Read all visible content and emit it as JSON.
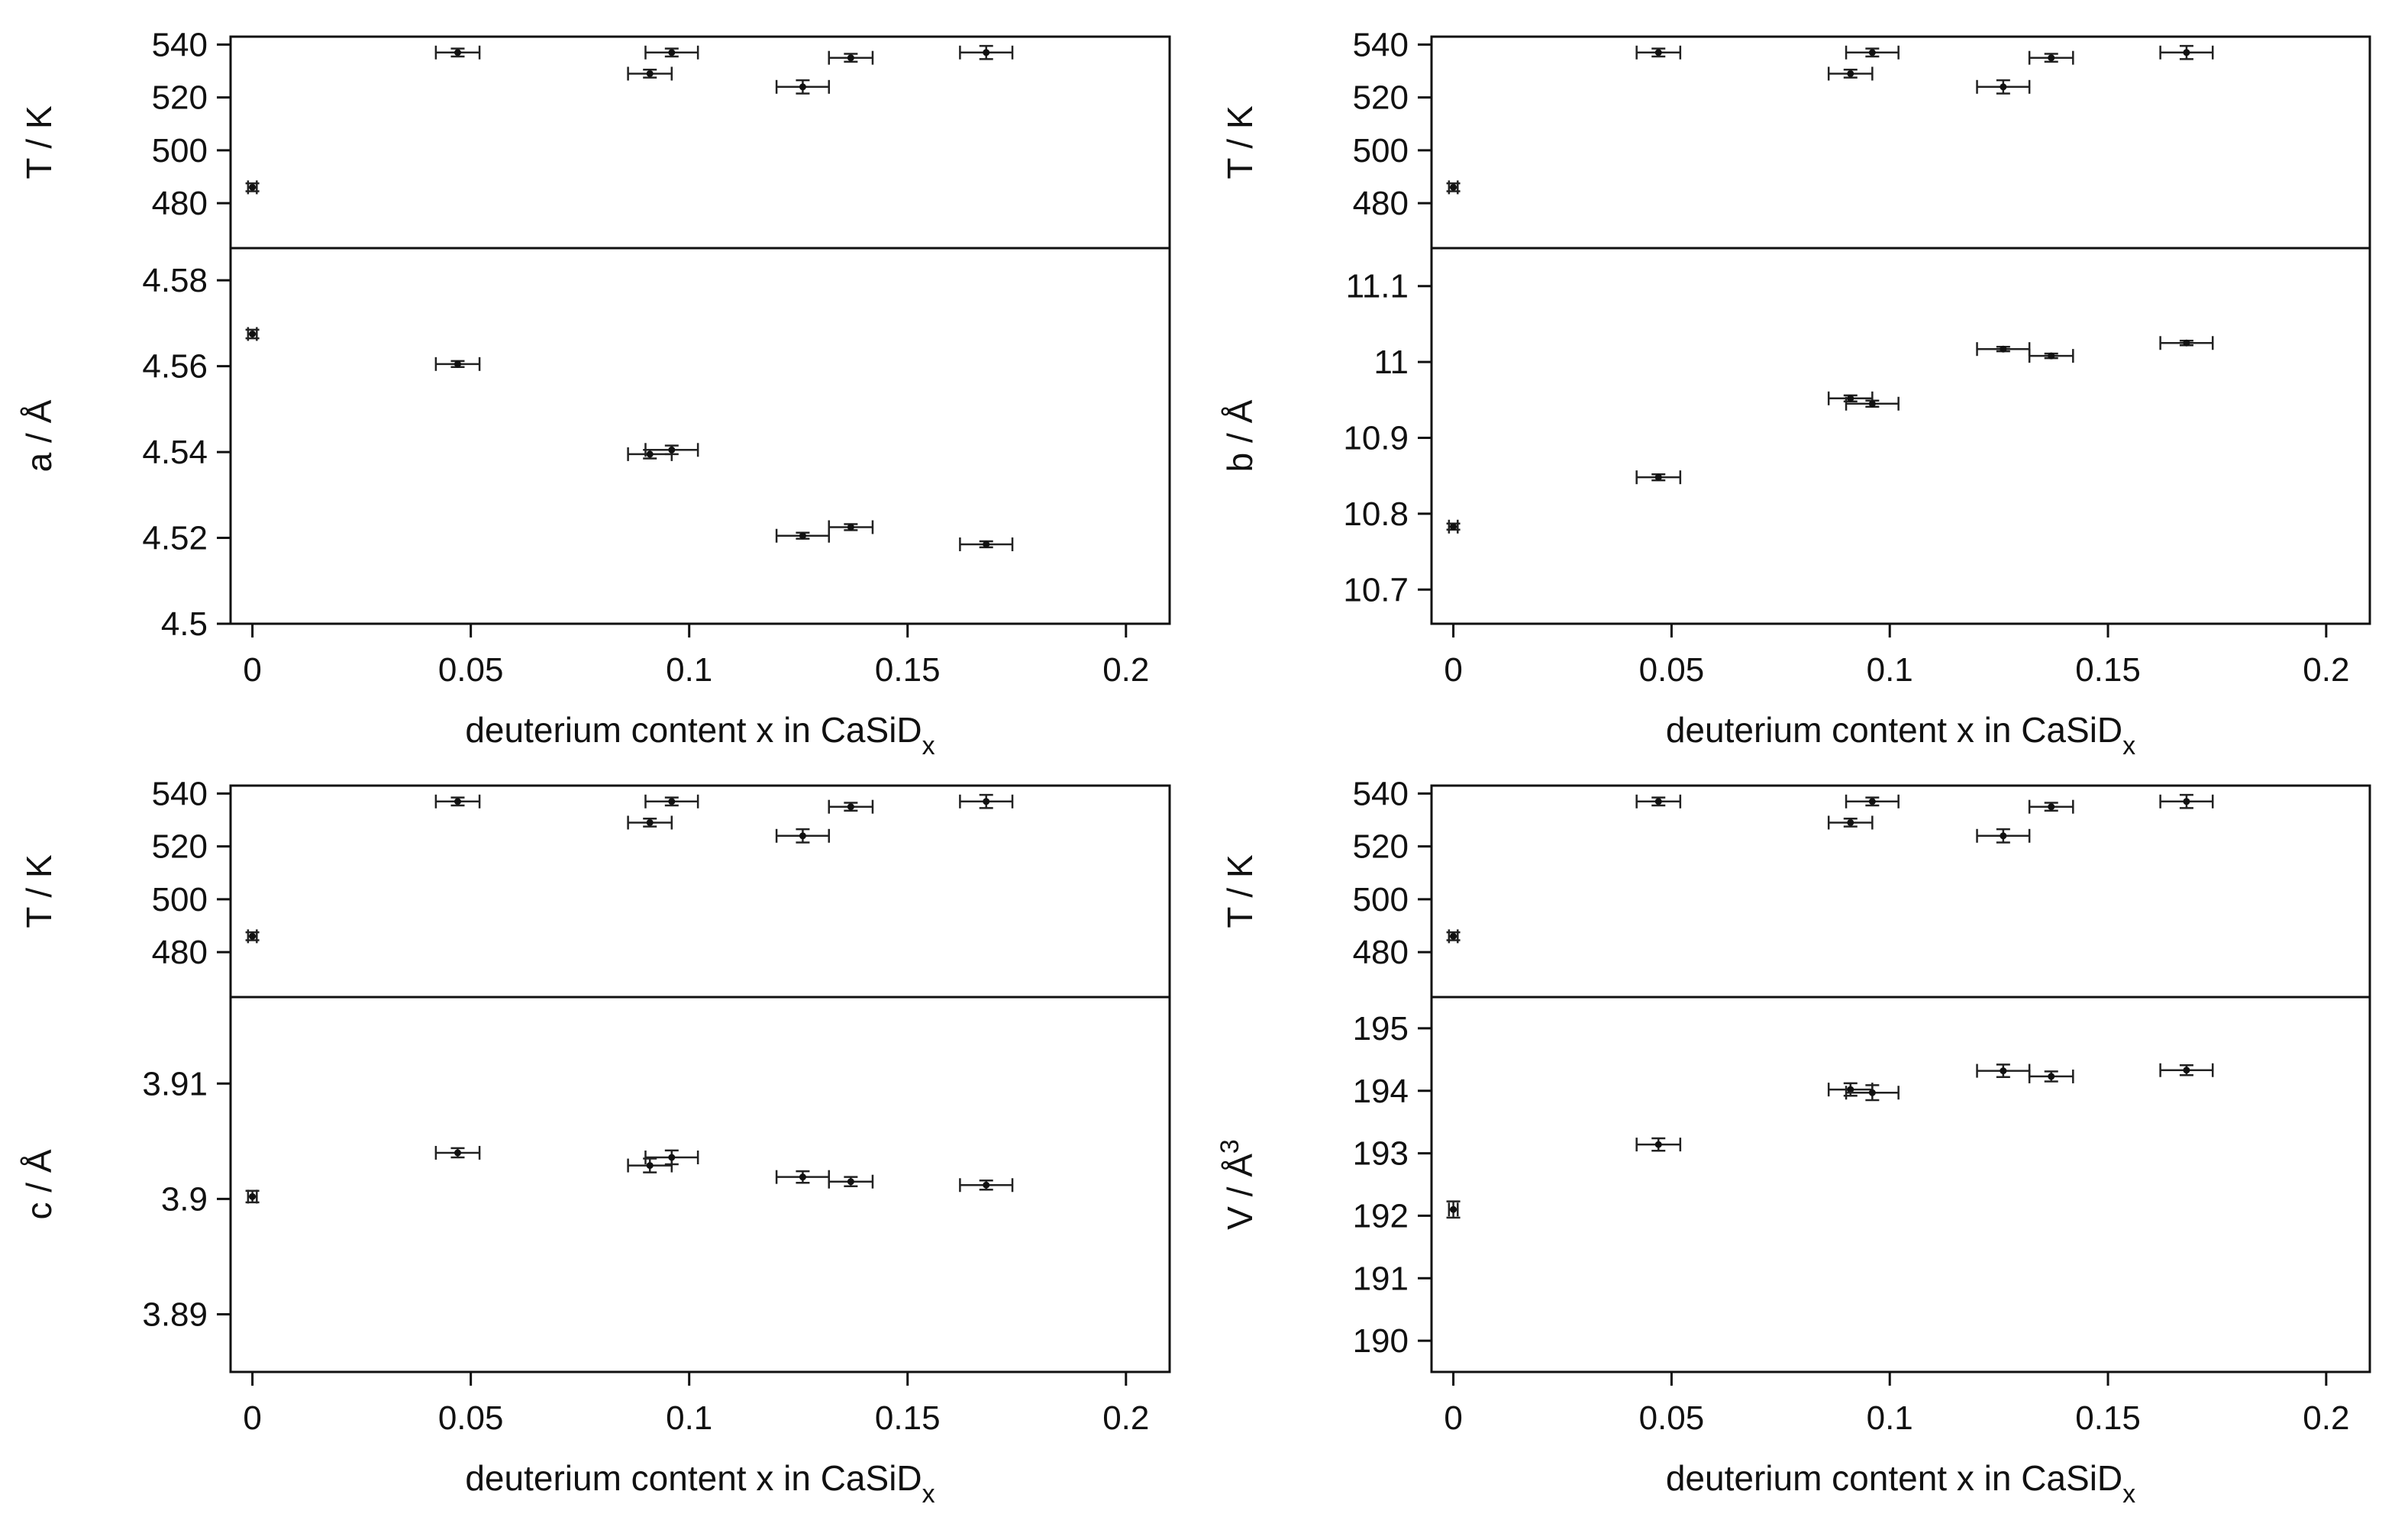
{
  "chart_data": [
    {
      "type": "scatter",
      "xlabel": "deuterium content x in CaSiD",
      "xlabel_sub": "x",
      "x_ticks": [
        "0",
        "0.05",
        "0.1",
        "0.15",
        "0.2"
      ],
      "xlim": [
        -0.005,
        0.21
      ],
      "top": {
        "ylabel": "T / K",
        "y_ticks": [
          "480",
          "500",
          "520",
          "540"
        ],
        "ylim": [
          463,
          543
        ],
        "points": [
          {
            "x": 0.0,
            "y": 486,
            "xerr": 0.001,
            "yerr": 1.5
          },
          {
            "x": 0.047,
            "y": 537,
            "xerr": 0.005,
            "yerr": 1.5
          },
          {
            "x": 0.091,
            "y": 529,
            "xerr": 0.005,
            "yerr": 1.5
          },
          {
            "x": 0.096,
            "y": 537,
            "xerr": 0.006,
            "yerr": 1.5
          },
          {
            "x": 0.126,
            "y": 524,
            "xerr": 0.006,
            "yerr": 2.5
          },
          {
            "x": 0.137,
            "y": 535,
            "xerr": 0.005,
            "yerr": 1.5
          },
          {
            "x": 0.168,
            "y": 537,
            "xerr": 0.006,
            "yerr": 2.5
          }
        ]
      },
      "bottom": {
        "ylabel": "a / Å",
        "y_ticks": [
          "4.5",
          "4.52",
          "4.54",
          "4.56",
          "4.58"
        ],
        "ylim": [
          4.5,
          4.5875
        ],
        "points": [
          {
            "x": 0.0,
            "y": 4.5675,
            "xerr": 0.001,
            "yerr": 0.001
          },
          {
            "x": 0.047,
            "y": 4.5605,
            "xerr": 0.005,
            "yerr": 0.0007
          },
          {
            "x": 0.091,
            "y": 4.5395,
            "xerr": 0.005,
            "yerr": 0.001
          },
          {
            "x": 0.096,
            "y": 4.5405,
            "xerr": 0.006,
            "yerr": 0.001
          },
          {
            "x": 0.126,
            "y": 4.5205,
            "xerr": 0.006,
            "yerr": 0.0007
          },
          {
            "x": 0.137,
            "y": 4.5225,
            "xerr": 0.005,
            "yerr": 0.0007
          },
          {
            "x": 0.168,
            "y": 4.5185,
            "xerr": 0.006,
            "yerr": 0.0007
          }
        ]
      }
    },
    {
      "type": "scatter",
      "xlabel": "deuterium content x in CaSiD",
      "xlabel_sub": "x",
      "x_ticks": [
        "0",
        "0.05",
        "0.1",
        "0.15",
        "0.2"
      ],
      "xlim": [
        -0.005,
        0.21
      ],
      "top": {
        "ylabel": "T / K",
        "y_ticks": [
          "480",
          "500",
          "520",
          "540"
        ],
        "ylim": [
          463,
          543
        ],
        "points": [
          {
            "x": 0.0,
            "y": 486,
            "xerr": 0.001,
            "yerr": 1.5
          },
          {
            "x": 0.047,
            "y": 537,
            "xerr": 0.005,
            "yerr": 1.5
          },
          {
            "x": 0.091,
            "y": 529,
            "xerr": 0.005,
            "yerr": 1.5
          },
          {
            "x": 0.096,
            "y": 537,
            "xerr": 0.006,
            "yerr": 1.5
          },
          {
            "x": 0.126,
            "y": 524,
            "xerr": 0.006,
            "yerr": 2.5
          },
          {
            "x": 0.137,
            "y": 535,
            "xerr": 0.005,
            "yerr": 1.5
          },
          {
            "x": 0.168,
            "y": 537,
            "xerr": 0.006,
            "yerr": 2.5
          }
        ]
      },
      "bottom": {
        "ylabel": "b / Å",
        "y_ticks": [
          "10.7",
          "10.8",
          "10.9",
          "11",
          "11.1"
        ],
        "ylim": [
          10.655,
          11.15
        ],
        "points": [
          {
            "x": 0.0,
            "y": 10.783,
            "xerr": 0.001,
            "yerr": 0.004
          },
          {
            "x": 0.047,
            "y": 10.848,
            "xerr": 0.005,
            "yerr": 0.004
          },
          {
            "x": 0.091,
            "y": 10.952,
            "xerr": 0.005,
            "yerr": 0.004
          },
          {
            "x": 0.096,
            "y": 10.945,
            "xerr": 0.006,
            "yerr": 0.004
          },
          {
            "x": 0.126,
            "y": 11.017,
            "xerr": 0.006,
            "yerr": 0.003
          },
          {
            "x": 0.137,
            "y": 11.008,
            "xerr": 0.005,
            "yerr": 0.003
          },
          {
            "x": 0.168,
            "y": 11.025,
            "xerr": 0.006,
            "yerr": 0.003
          }
        ]
      }
    },
    {
      "type": "scatter",
      "xlabel": "deuterium content x in CaSiD",
      "xlabel_sub": "x",
      "x_ticks": [
        "0",
        "0.05",
        "0.1",
        "0.15",
        "0.2"
      ],
      "xlim": [
        -0.005,
        0.21
      ],
      "top": {
        "ylabel": "T / K",
        "y_ticks": [
          "480",
          "500",
          "520",
          "540"
        ],
        "ylim": [
          463,
          543
        ],
        "points": [
          {
            "x": 0.0,
            "y": 486,
            "xerr": 0.001,
            "yerr": 1.5
          },
          {
            "x": 0.047,
            "y": 537,
            "xerr": 0.005,
            "yerr": 1.5
          },
          {
            "x": 0.091,
            "y": 529,
            "xerr": 0.005,
            "yerr": 1.5
          },
          {
            "x": 0.096,
            "y": 537,
            "xerr": 0.006,
            "yerr": 1.5
          },
          {
            "x": 0.126,
            "y": 524,
            "xerr": 0.006,
            "yerr": 2.5
          },
          {
            "x": 0.137,
            "y": 535,
            "xerr": 0.005,
            "yerr": 1.5
          },
          {
            "x": 0.168,
            "y": 537,
            "xerr": 0.006,
            "yerr": 2.5
          }
        ]
      },
      "bottom": {
        "ylabel": "c / Å",
        "y_ticks": [
          "3.89",
          "3.9",
          "3.91"
        ],
        "ylim": [
          3.885,
          3.9175
        ],
        "points": [
          {
            "x": 0.0,
            "y": 3.9002,
            "xerr": 0.001,
            "yerr": 0.0005
          },
          {
            "x": 0.047,
            "y": 3.904,
            "xerr": 0.005,
            "yerr": 0.0004
          },
          {
            "x": 0.091,
            "y": 3.9029,
            "xerr": 0.005,
            "yerr": 0.0006
          },
          {
            "x": 0.096,
            "y": 3.9036,
            "xerr": 0.006,
            "yerr": 0.0006
          },
          {
            "x": 0.126,
            "y": 3.9019,
            "xerr": 0.006,
            "yerr": 0.0005
          },
          {
            "x": 0.137,
            "y": 3.9015,
            "xerr": 0.005,
            "yerr": 0.0004
          },
          {
            "x": 0.168,
            "y": 3.9012,
            "xerr": 0.006,
            "yerr": 0.0004
          }
        ]
      }
    },
    {
      "type": "scatter",
      "xlabel": "deuterium content x in CaSiD",
      "xlabel_sub": "x",
      "x_ticks": [
        "0",
        "0.05",
        "0.1",
        "0.15",
        "0.2"
      ],
      "xlim": [
        -0.005,
        0.21
      ],
      "top": {
        "ylabel": "T / K",
        "y_ticks": [
          "480",
          "500",
          "520",
          "540"
        ],
        "ylim": [
          463,
          543
        ],
        "points": [
          {
            "x": 0.0,
            "y": 486,
            "xerr": 0.001,
            "yerr": 1.5
          },
          {
            "x": 0.047,
            "y": 537,
            "xerr": 0.005,
            "yerr": 1.5
          },
          {
            "x": 0.091,
            "y": 529,
            "xerr": 0.005,
            "yerr": 1.5
          },
          {
            "x": 0.096,
            "y": 537,
            "xerr": 0.006,
            "yerr": 1.5
          },
          {
            "x": 0.126,
            "y": 524,
            "xerr": 0.006,
            "yerr": 2.5
          },
          {
            "x": 0.137,
            "y": 535,
            "xerr": 0.005,
            "yerr": 1.5
          },
          {
            "x": 0.168,
            "y": 537,
            "xerr": 0.006,
            "yerr": 2.5
          }
        ]
      },
      "bottom": {
        "ylabel": "V / Å",
        "ylabel_sup": "3",
        "y_ticks": [
          "190",
          "191",
          "192",
          "193",
          "194",
          "195"
        ],
        "ylim": [
          189.5,
          195.5
        ],
        "points": [
          {
            "x": 0.0,
            "y": 192.1,
            "xerr": 0.001,
            "yerr": 0.13
          },
          {
            "x": 0.047,
            "y": 193.14,
            "xerr": 0.005,
            "yerr": 0.1
          },
          {
            "x": 0.091,
            "y": 194.02,
            "xerr": 0.005,
            "yerr": 0.1
          },
          {
            "x": 0.096,
            "y": 193.97,
            "xerr": 0.006,
            "yerr": 0.12
          },
          {
            "x": 0.126,
            "y": 194.32,
            "xerr": 0.006,
            "yerr": 0.1
          },
          {
            "x": 0.137,
            "y": 194.23,
            "xerr": 0.005,
            "yerr": 0.08
          },
          {
            "x": 0.168,
            "y": 194.33,
            "xerr": 0.006,
            "yerr": 0.08
          }
        ]
      }
    }
  ]
}
